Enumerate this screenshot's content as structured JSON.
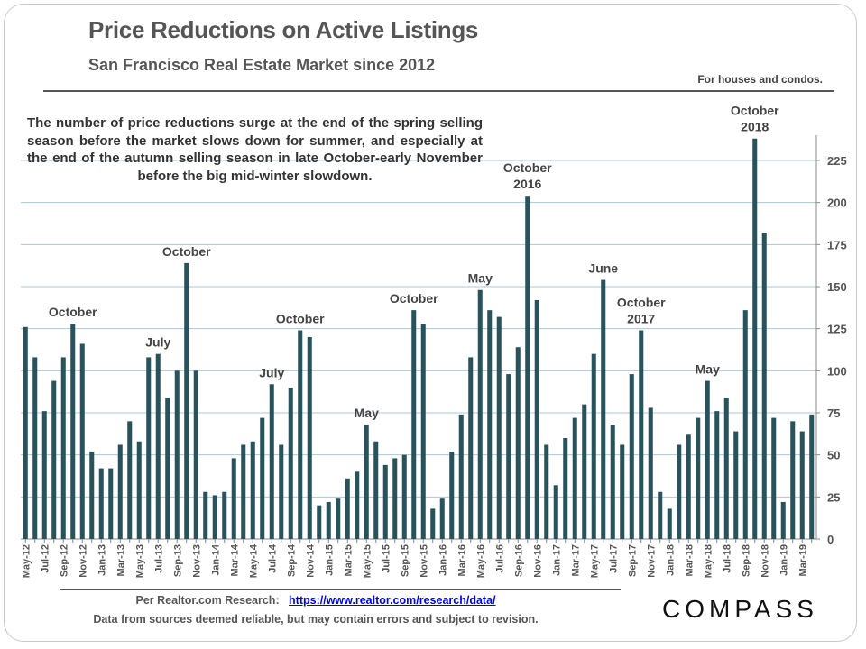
{
  "header": {
    "title": "Price Reductions on Active Listings",
    "subtitle": "San Francisco Real Estate Market since 2012",
    "note": "For houses and condos."
  },
  "commentary": "The number of price reductions surge at the end of the spring selling season before the market slows down for summer, and especially at the end of the autumn selling season in late October-early November before the big mid-winter slowdown.",
  "footer": {
    "source_prefix": "Per Realtor.com Research:",
    "source_link": "https://www.realtor.com/research/data/",
    "disclaimer": "Data from sources deemed reliable, but may contain errors and subject to revision.",
    "logo": "COMPASS"
  },
  "colors": {
    "bar": "#29535c",
    "grid": "#a9c8d4",
    "axis_text": "#555555"
  },
  "chart_data": {
    "type": "bar",
    "title": "",
    "xlabel": "",
    "ylabel": "",
    "ylim": [
      0,
      240
    ],
    "yticks": [
      0,
      25,
      50,
      75,
      100,
      125,
      150,
      175,
      200,
      225
    ],
    "yaxis_side": "right",
    "grid": true,
    "categories": [
      "May-12",
      "Jun-12",
      "Jul-12",
      "Aug-12",
      "Sep-12",
      "Oct-12",
      "Nov-12",
      "Dec-12",
      "Jan-13",
      "Feb-13",
      "Mar-13",
      "Apr-13",
      "May-13",
      "Jun-13",
      "Jul-13",
      "Aug-13",
      "Sep-13",
      "Oct-13",
      "Nov-13",
      "Dec-13",
      "Jan-14",
      "Feb-14",
      "Mar-14",
      "Apr-14",
      "May-14",
      "Jun-14",
      "Jul-14",
      "Aug-14",
      "Sep-14",
      "Oct-14",
      "Nov-14",
      "Dec-14",
      "Jan-15",
      "Feb-15",
      "Mar-15",
      "Apr-15",
      "May-15",
      "Jun-15",
      "Jul-15",
      "Aug-15",
      "Sep-15",
      "Oct-15",
      "Nov-15",
      "Dec-15",
      "Jan-16",
      "Feb-16",
      "Mar-16",
      "Apr-16",
      "May-16",
      "Jun-16",
      "Jul-16",
      "Aug-16",
      "Sep-16",
      "Oct-16",
      "Nov-16",
      "Dec-16",
      "Jan-17",
      "Feb-17",
      "Mar-17",
      "Apr-17",
      "May-17",
      "Jun-17",
      "Jul-17",
      "Aug-17",
      "Sep-17",
      "Oct-17",
      "Nov-17",
      "Dec-17",
      "Jan-18",
      "Feb-18",
      "Mar-18",
      "Apr-18",
      "May-18",
      "Jun-18",
      "Jul-18",
      "Aug-18",
      "Sep-18",
      "Oct-18",
      "Nov-18",
      "Dec-18",
      "Jan-19",
      "Feb-19",
      "Mar-19",
      "Apr-19"
    ],
    "tick_labels": [
      "May-12",
      "Jul-12",
      "Sep-12",
      "Nov-12",
      "Jan-13",
      "Mar-13",
      "May-13",
      "Jul-13",
      "Sep-13",
      "Nov-13",
      "Jan-14",
      "Mar-14",
      "May-14",
      "Jul-14",
      "Sep-14",
      "Nov-14",
      "Jan-15",
      "Mar-15",
      "May-15",
      "Jul-15",
      "Sep-15",
      "Nov-15",
      "Jan-16",
      "Mar-16",
      "May-16",
      "Jul-16",
      "Sep-16",
      "Nov-16",
      "Jan-17",
      "Mar-17",
      "May-17",
      "Jul-17",
      "Sep-17",
      "Nov-17",
      "Jan-18",
      "Mar-18",
      "May-18",
      "Jul-18",
      "Sep-18",
      "Nov-18",
      "Jan-19",
      "Mar-19"
    ],
    "values": [
      126,
      108,
      76,
      94,
      108,
      128,
      116,
      52,
      42,
      42,
      56,
      70,
      58,
      108,
      110,
      84,
      100,
      164,
      100,
      28,
      26,
      28,
      48,
      56,
      58,
      72,
      92,
      56,
      90,
      124,
      120,
      20,
      22,
      24,
      36,
      40,
      68,
      58,
      44,
      48,
      50,
      136,
      128,
      18,
      24,
      52,
      74,
      108,
      148,
      136,
      132,
      98,
      114,
      204,
      142,
      56,
      32,
      60,
      72,
      80,
      110,
      154,
      68,
      56,
      98,
      124,
      78,
      28,
      18,
      56,
      62,
      72,
      94,
      76,
      84,
      64,
      136,
      238,
      182,
      72,
      22,
      70,
      64,
      74
    ],
    "annotations": [
      {
        "index": 5,
        "text": "October"
      },
      {
        "index": 14,
        "text": "July"
      },
      {
        "index": 17,
        "text": "October"
      },
      {
        "index": 26,
        "text": "July"
      },
      {
        "index": 29,
        "text": "October"
      },
      {
        "index": 36,
        "text": "May"
      },
      {
        "index": 41,
        "text": "October"
      },
      {
        "index": 48,
        "text": "May"
      },
      {
        "index": 53,
        "text": "October 2016"
      },
      {
        "index": 61,
        "text": "June"
      },
      {
        "index": 65,
        "text": "October 2017"
      },
      {
        "index": 72,
        "text": "May"
      },
      {
        "index": 77,
        "text": "October 2018"
      }
    ]
  }
}
